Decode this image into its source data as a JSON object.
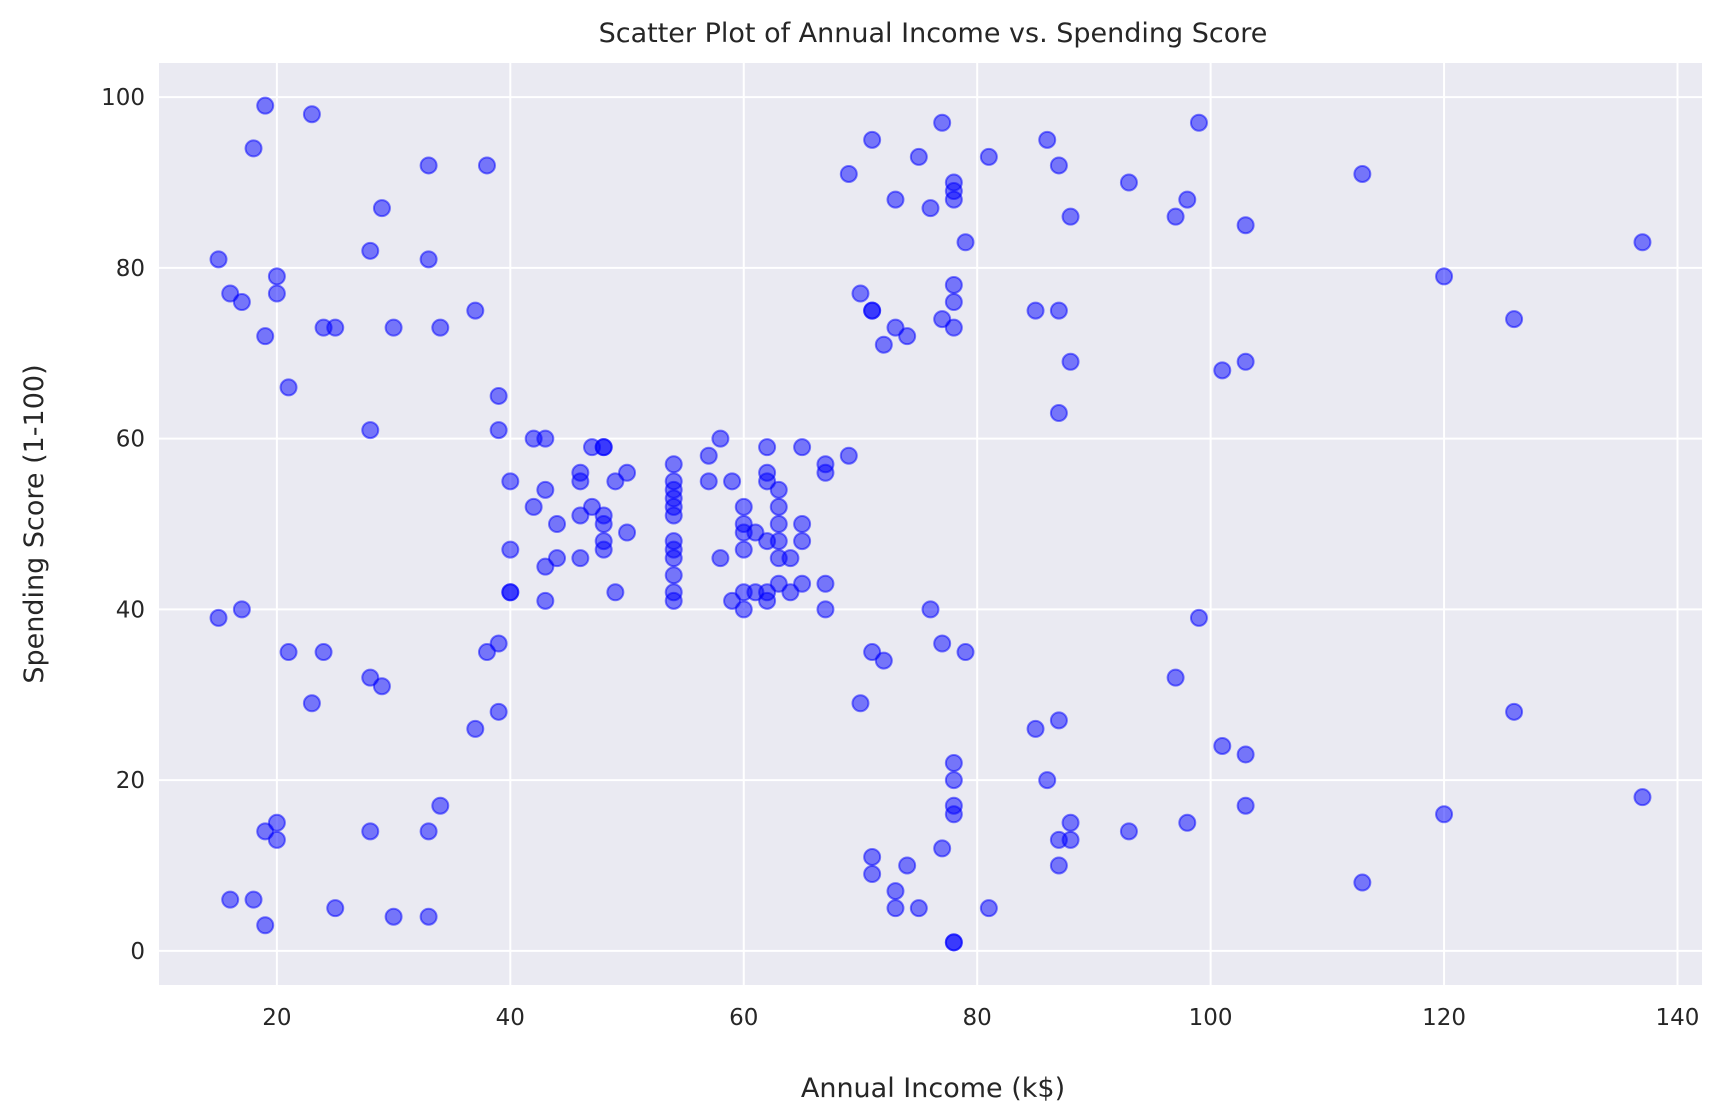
{
  "chart_data": {
    "type": "scatter",
    "title": "Scatter Plot of Annual Income vs. Spending Score",
    "xlabel": "Annual Income (k$)",
    "ylabel": "Spending Score (1-100)",
    "xlim": [
      9.9,
      142.1
    ],
    "ylim": [
      -4,
      104
    ],
    "xticks": [
      20,
      40,
      60,
      80,
      100,
      120,
      140
    ],
    "yticks": [
      0,
      20,
      40,
      60,
      80,
      100
    ],
    "grid": true,
    "marker_color": "#0000ff",
    "marker_alpha": 0.5,
    "background_color": "#eaeaf2",
    "points": [
      [
        15,
        39
      ],
      [
        15,
        81
      ],
      [
        16,
        6
      ],
      [
        16,
        77
      ],
      [
        17,
        40
      ],
      [
        17,
        76
      ],
      [
        18,
        6
      ],
      [
        18,
        94
      ],
      [
        19,
        3
      ],
      [
        19,
        72
      ],
      [
        19,
        14
      ],
      [
        19,
        99
      ],
      [
        20,
        15
      ],
      [
        20,
        77
      ],
      [
        20,
        13
      ],
      [
        20,
        79
      ],
      [
        21,
        35
      ],
      [
        21,
        66
      ],
      [
        23,
        29
      ],
      [
        23,
        98
      ],
      [
        24,
        35
      ],
      [
        24,
        73
      ],
      [
        25,
        5
      ],
      [
        25,
        73
      ],
      [
        28,
        14
      ],
      [
        28,
        82
      ],
      [
        28,
        32
      ],
      [
        28,
        61
      ],
      [
        29,
        31
      ],
      [
        29,
        87
      ],
      [
        30,
        4
      ],
      [
        30,
        73
      ],
      [
        33,
        4
      ],
      [
        33,
        92
      ],
      [
        33,
        14
      ],
      [
        33,
        81
      ],
      [
        34,
        17
      ],
      [
        34,
        73
      ],
      [
        37,
        26
      ],
      [
        37,
        75
      ],
      [
        38,
        35
      ],
      [
        38,
        92
      ],
      [
        39,
        36
      ],
      [
        39,
        61
      ],
      [
        39,
        28
      ],
      [
        39,
        65
      ],
      [
        40,
        55
      ],
      [
        40,
        47
      ],
      [
        40,
        42
      ],
      [
        40,
        42
      ],
      [
        42,
        52
      ],
      [
        42,
        60
      ],
      [
        43,
        54
      ],
      [
        43,
        60
      ],
      [
        43,
        45
      ],
      [
        43,
        41
      ],
      [
        44,
        50
      ],
      [
        44,
        46
      ],
      [
        46,
        51
      ],
      [
        46,
        46
      ],
      [
        46,
        56
      ],
      [
        46,
        55
      ],
      [
        47,
        52
      ],
      [
        47,
        59
      ],
      [
        48,
        51
      ],
      [
        48,
        59
      ],
      [
        48,
        50
      ],
      [
        48,
        48
      ],
      [
        48,
        59
      ],
      [
        48,
        47
      ],
      [
        49,
        55
      ],
      [
        49,
        42
      ],
      [
        50,
        49
      ],
      [
        50,
        56
      ],
      [
        54,
        47
      ],
      [
        54,
        54
      ],
      [
        54,
        53
      ],
      [
        54,
        48
      ],
      [
        54,
        52
      ],
      [
        54,
        42
      ],
      [
        54,
        51
      ],
      [
        54,
        55
      ],
      [
        54,
        41
      ],
      [
        54,
        44
      ],
      [
        54,
        57
      ],
      [
        54,
        46
      ],
      [
        57,
        58
      ],
      [
        57,
        55
      ],
      [
        58,
        60
      ],
      [
        58,
        46
      ],
      [
        59,
        55
      ],
      [
        59,
        41
      ],
      [
        60,
        49
      ],
      [
        60,
        40
      ],
      [
        60,
        42
      ],
      [
        60,
        52
      ],
      [
        60,
        47
      ],
      [
        60,
        50
      ],
      [
        61,
        42
      ],
      [
        61,
        49
      ],
      [
        62,
        41
      ],
      [
        62,
        48
      ],
      [
        62,
        59
      ],
      [
        62,
        55
      ],
      [
        62,
        56
      ],
      [
        62,
        42
      ],
      [
        63,
        50
      ],
      [
        63,
        46
      ],
      [
        63,
        43
      ],
      [
        63,
        48
      ],
      [
        63,
        52
      ],
      [
        63,
        54
      ],
      [
        64,
        42
      ],
      [
        64,
        46
      ],
      [
        65,
        48
      ],
      [
        65,
        50
      ],
      [
        65,
        43
      ],
      [
        65,
        59
      ],
      [
        67,
        43
      ],
      [
        67,
        57
      ],
      [
        67,
        56
      ],
      [
        67,
        40
      ],
      [
        69,
        58
      ],
      [
        69,
        91
      ],
      [
        70,
        29
      ],
      [
        70,
        77
      ],
      [
        71,
        35
      ],
      [
        71,
        95
      ],
      [
        71,
        11
      ],
      [
        71,
        75
      ],
      [
        71,
        9
      ],
      [
        71,
        75
      ],
      [
        72,
        34
      ],
      [
        72,
        71
      ],
      [
        73,
        5
      ],
      [
        73,
        88
      ],
      [
        73,
        7
      ],
      [
        73,
        73
      ],
      [
        74,
        10
      ],
      [
        74,
        72
      ],
      [
        75,
        5
      ],
      [
        75,
        93
      ],
      [
        76,
        40
      ],
      [
        76,
        87
      ],
      [
        77,
        12
      ],
      [
        77,
        97
      ],
      [
        77,
        36
      ],
      [
        77,
        74
      ],
      [
        78,
        22
      ],
      [
        78,
        90
      ],
      [
        78,
        17
      ],
      [
        78,
        88
      ],
      [
        78,
        20
      ],
      [
        78,
        76
      ],
      [
        78,
        16
      ],
      [
        78,
        89
      ],
      [
        78,
        1
      ],
      [
        78,
        78
      ],
      [
        78,
        1
      ],
      [
        78,
        73
      ],
      [
        79,
        35
      ],
      [
        79,
        83
      ],
      [
        81,
        5
      ],
      [
        81,
        93
      ],
      [
        85,
        26
      ],
      [
        85,
        75
      ],
      [
        86,
        20
      ],
      [
        86,
        95
      ],
      [
        87,
        27
      ],
      [
        87,
        63
      ],
      [
        87,
        13
      ],
      [
        87,
        75
      ],
      [
        87,
        10
      ],
      [
        87,
        92
      ],
      [
        88,
        13
      ],
      [
        88,
        86
      ],
      [
        88,
        15
      ],
      [
        88,
        69
      ],
      [
        93,
        14
      ],
      [
        93,
        90
      ],
      [
        97,
        32
      ],
      [
        97,
        86
      ],
      [
        98,
        15
      ],
      [
        98,
        88
      ],
      [
        99,
        39
      ],
      [
        99,
        97
      ],
      [
        101,
        24
      ],
      [
        101,
        68
      ],
      [
        103,
        17
      ],
      [
        103,
        85
      ],
      [
        103,
        23
      ],
      [
        103,
        69
      ],
      [
        113,
        8
      ],
      [
        113,
        91
      ],
      [
        120,
        16
      ],
      [
        120,
        79
      ],
      [
        126,
        28
      ],
      [
        126,
        74
      ],
      [
        137,
        18
      ],
      [
        137,
        83
      ]
    ]
  }
}
